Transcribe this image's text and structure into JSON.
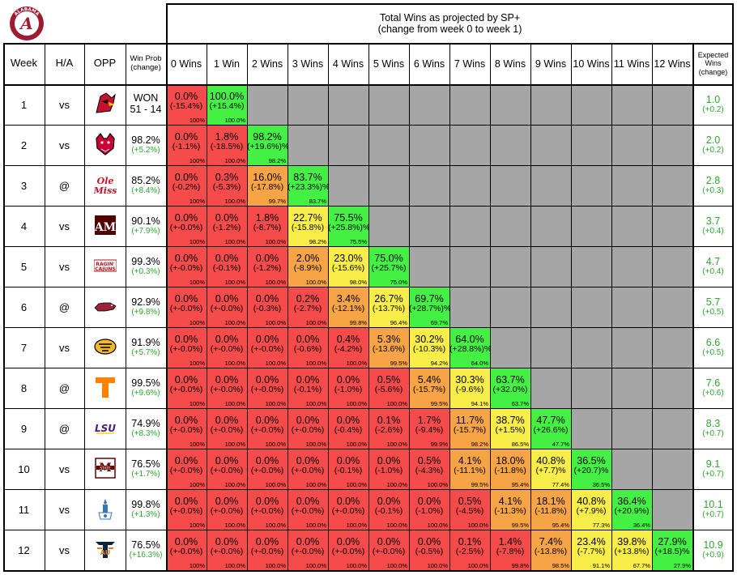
{
  "header": {
    "title": "Total Wins as projected by SP+",
    "subtitle": "(change from week 0 to week 1)"
  },
  "columns": {
    "week": "Week",
    "ha": "H/A",
    "opp": "OPP",
    "winprob": "Win Prob (change)",
    "wins": [
      "0 Wins",
      "1 Win",
      "2 Wins",
      "3 Wins",
      "4 Wins",
      "5 Wins",
      "6 Wins",
      "7 Wins",
      "8 Wins",
      "9 Wins",
      "10 Wins",
      "11 Wins",
      "12 Wins"
    ],
    "expected": "Expected Wins (change)"
  },
  "colors": {
    "red": "#f54b4b",
    "orange": "#f7a447",
    "yellow": "#f9ed4a",
    "green": "#44f044",
    "gray": "#a6a6a6",
    "greenText": "#2ca62c"
  },
  "logo_text": "ALABAMA",
  "rows": [
    {
      "week": "1",
      "ha": "vs",
      "opp_icon": "louisville-cardinal-icon",
      "wp_top": "WON",
      "wp_bottom": "51 - 14",
      "cells": [
        [
          "0.0%",
          "(-15.4%)",
          "100%"
        ],
        [
          "100.0%",
          "(+15.4%)",
          "100.0%"
        ]
      ],
      "ew": "1.0",
      "ew_change": "(+0.2)"
    },
    {
      "week": "2",
      "ha": "vs",
      "opp_icon": "arkansas-state-redwolf-icon",
      "wp_top": "98.2%",
      "wp_bottom": "(+5.2%)",
      "cells": [
        [
          "0.0%",
          "(-1.1%)",
          "100%"
        ],
        [
          "1.8%",
          "(-18.5%)",
          "100.0%"
        ],
        [
          "98.2%",
          "(+19.6%)%",
          "98.2%"
        ]
      ],
      "ew": "2.0",
      "ew_change": "(+0.2)"
    },
    {
      "week": "3",
      "ha": "@",
      "opp_icon": "ole-miss-icon",
      "wp_top": "85.2%",
      "wp_bottom": "(+8.4%)",
      "cells": [
        [
          "0.0%",
          "(-0.2%)",
          "100%"
        ],
        [
          "0.3%",
          "(-5.3%)",
          "100.0%"
        ],
        [
          "16.0%",
          "(-17.8%)",
          "99.7%"
        ],
        [
          "83.7%",
          "(+23.3%)%",
          "83.7%"
        ]
      ],
      "ew": "2.8",
      "ew_change": "(+0.3)"
    },
    {
      "week": "4",
      "ha": "vs",
      "opp_icon": "texas-am-icon",
      "wp_top": "90.1%",
      "wp_bottom": "(+7.9%)",
      "cells": [
        [
          "0.0%",
          "(+-0.0%)",
          "100%"
        ],
        [
          "0.0%",
          "(-1.2%)",
          "100.0%"
        ],
        [
          "1.8%",
          "(-8.7%)",
          "100.0%"
        ],
        [
          "22.7%",
          "(-15.8%)",
          "98.2%"
        ],
        [
          "75.5%",
          "(+25.8%)%",
          "75.5%"
        ]
      ],
      "ew": "3.7",
      "ew_change": "(+0.4)"
    },
    {
      "week": "5",
      "ha": "vs",
      "opp_icon": "ragin-cajuns-icon",
      "wp_top": "99.3%",
      "wp_bottom": "(+0.3%)",
      "cells": [
        [
          "0.0%",
          "(+-0.0%)",
          "100%"
        ],
        [
          "0.0%",
          "(-0.1%)",
          "100.0%"
        ],
        [
          "0.0%",
          "(-1.2%)",
          "100.0%"
        ],
        [
          "2.0%",
          "(-8.9%)",
          "100.0%"
        ],
        [
          "23.0%",
          "(-15.6%)",
          "98.0%"
        ],
        [
          "75.0%",
          "(+25.7%)",
          "75.0%"
        ]
      ],
      "ew": "4.7",
      "ew_change": "(+0.4)"
    },
    {
      "week": "6",
      "ha": "@",
      "opp_icon": "arkansas-razorback-icon",
      "wp_top": "92.9%",
      "wp_bottom": "(+9.8%)",
      "cells": [
        [
          "0.0%",
          "(+-0.0%)",
          "100%"
        ],
        [
          "0.0%",
          "(+-0.0%)",
          "100.0%"
        ],
        [
          "0.0%",
          "(-0.3%)",
          "100.0%"
        ],
        [
          "0.2%",
          "(-2.7%)",
          "100.0%"
        ],
        [
          "3.4%",
          "(-12.1%)",
          "99.8%"
        ],
        [
          "26.7%",
          "(-13.7%)",
          "96.4%"
        ],
        [
          "69.7%",
          "(+28.7%)%",
          "69.7%"
        ]
      ],
      "ew": "5.7",
      "ew_change": "(+0.5)"
    },
    {
      "week": "7",
      "ha": "vs",
      "opp_icon": "missouri-tiger-icon",
      "wp_top": "91.9%",
      "wp_bottom": "(+5.7%)",
      "cells": [
        [
          "0.0%",
          "(+-0.0%)",
          "100%"
        ],
        [
          "0.0%",
          "(+-0.0%)",
          "100.0%"
        ],
        [
          "0.0%",
          "(+-0.0%)",
          "100.0%"
        ],
        [
          "0.0%",
          "(-0.6%)",
          "100.0%"
        ],
        [
          "0.4%",
          "(-4.2%)",
          "100.0%"
        ],
        [
          "5.3%",
          "(-13.6%)",
          "99.5%"
        ],
        [
          "30.2%",
          "(-10.3%)",
          "94.2%"
        ],
        [
          "64.0%",
          "(+28.8%)%",
          "64.0%"
        ]
      ],
      "ew": "6.6",
      "ew_change": "(+0.5)"
    },
    {
      "week": "8",
      "ha": "@",
      "opp_icon": "tennessee-icon",
      "wp_top": "99.5%",
      "wp_bottom": "(+9.6%)",
      "cells": [
        [
          "0.0%",
          "(+-0.0%)",
          "100%"
        ],
        [
          "0.0%",
          "(+-0.0%)",
          "100.0%"
        ],
        [
          "0.0%",
          "(+-0.0%)",
          "100.0%"
        ],
        [
          "0.0%",
          "(-0.1%)",
          "100.0%"
        ],
        [
          "0.0%",
          "(-1.0%)",
          "100.0%"
        ],
        [
          "0.5%",
          "(-5.6%)",
          "100.0%"
        ],
        [
          "5.4%",
          "(-15.7%)",
          "99.5%"
        ],
        [
          "30.3%",
          "(-9.6%)",
          "94.1%"
        ],
        [
          "63.7%",
          "(+32.0%)",
          "63.7%"
        ]
      ],
      "ew": "7.6",
      "ew_change": "(+0.6)"
    },
    {
      "week": "9",
      "ha": "@",
      "opp_icon": "lsu-icon",
      "wp_top": "74.9%",
      "wp_bottom": "(+8.3%)",
      "cells": [
        [
          "0.0%",
          "(+-0.0%)",
          "100%"
        ],
        [
          "0.0%",
          "(+-0.0%)",
          "100.0%"
        ],
        [
          "0.0%",
          "(+-0.0%)",
          "100.0%"
        ],
        [
          "0.0%",
          "(+-0.0%)",
          "100.0%"
        ],
        [
          "0.0%",
          "(-0.4%)",
          "100.0%"
        ],
        [
          "0.1%",
          "(-2.6%)",
          "100.0%"
        ],
        [
          "1.7%",
          "(-9.4%)",
          "99.9%"
        ],
        [
          "11.7%",
          "(-15.7%)",
          "98.2%"
        ],
        [
          "38.7%",
          "(+1.5%)",
          "86.5%"
        ],
        [
          "47.7%",
          "(+26.6%)",
          "47.7%"
        ]
      ],
      "ew": "8.3",
      "ew_change": "(+0.7)"
    },
    {
      "week": "10",
      "ha": "vs",
      "opp_icon": "mississippi-state-icon",
      "wp_top": "76.5%",
      "wp_bottom": "(+1.7%)",
      "cells": [
        [
          "0.0%",
          "(+-0.0%)",
          "100%"
        ],
        [
          "0.0%",
          "(+-0.0%)",
          "100.0%"
        ],
        [
          "0.0%",
          "(+-0.0%)",
          "100.0%"
        ],
        [
          "0.0%",
          "(+-0.0%)",
          "100.0%"
        ],
        [
          "0.0%",
          "(-0.1%)",
          "100.0%"
        ],
        [
          "0.0%",
          "(-1.0%)",
          "100.0%"
        ],
        [
          "0.5%",
          "(-4.3%)",
          "100.0%"
        ],
        [
          "4.1%",
          "(-11.1%)",
          "99.5%"
        ],
        [
          "18.0%",
          "(-11.8%)",
          "95.4%"
        ],
        [
          "40.8%",
          "(+7.7)%",
          "77.4%"
        ],
        [
          "36.5%",
          "(+20.7)%",
          "36.5%"
        ]
      ],
      "ew": "9.1",
      "ew_change": "(+0.7)"
    },
    {
      "week": "11",
      "ha": "vs",
      "opp_icon": "citadel-icon",
      "wp_top": "99.8%",
      "wp_bottom": "(+1.3%)",
      "cells": [
        [
          "0.0%",
          "(+-0.0%)",
          "100%"
        ],
        [
          "0.0%",
          "(+-0.0%)",
          "100.0%"
        ],
        [
          "0.0%",
          "(+-0.0%)",
          "100.0%"
        ],
        [
          "0.0%",
          "(+-0.0%)",
          "100.0%"
        ],
        [
          "0.0%",
          "(+-0.0%)",
          "100.0%"
        ],
        [
          "0.0%",
          "(-0.1%)",
          "100.0%"
        ],
        [
          "0.0%",
          "(-1.0%)",
          "100.0%"
        ],
        [
          "0.5%",
          "(-4.5%)",
          "100.0%"
        ],
        [
          "4.1%",
          "(-11.3%)",
          "99.5%"
        ],
        [
          "18.1%",
          "(-11.8%)",
          "95.4%"
        ],
        [
          "40.8%",
          "(+7.9%)",
          "77.3%"
        ],
        [
          "36.4%",
          "(+20.9%)",
          "36.4%"
        ]
      ],
      "ew": "10.1",
      "ew_change": "(+0.7)"
    },
    {
      "week": "12",
      "ha": "vs",
      "opp_icon": "auburn-icon",
      "wp_top": "76.5%",
      "wp_bottom": "(+16.3%)",
      "cells": [
        [
          "0.0%",
          "(+-0.0%)",
          "100%"
        ],
        [
          "0.0%",
          "(+-0.0%)",
          "100.0%"
        ],
        [
          "0.0%",
          "(+-0.0%)",
          "100.0%"
        ],
        [
          "0.0%",
          "(+-0.0%)",
          "100.0%"
        ],
        [
          "0.0%",
          "(+-0.0%)",
          "100.0%"
        ],
        [
          "0.0%",
          "(+-0.0%)",
          "100.0%"
        ],
        [
          "0.0%",
          "(-0.5%)",
          "100.0%"
        ],
        [
          "0.1%",
          "(-2.5%)",
          "100.0%"
        ],
        [
          "1.4%",
          "(-7.8%)",
          "99.8%"
        ],
        [
          "7.4%",
          "(-13.8%)",
          "98.5%"
        ],
        [
          "23.4%",
          "(-7.7%)",
          "91.1%"
        ],
        [
          "39.8%",
          "(+13.8%)",
          "67.7%"
        ],
        [
          "27.9%",
          "(+18.5)%",
          "27.9%"
        ]
      ],
      "ew": "10.9",
      "ew_change": "(+0.9)"
    }
  ],
  "chart_data": {
    "type": "table",
    "title": "Total Wins as projected by SP+",
    "subtitle": "(change from week 0 to week 1)",
    "columns": [
      "0 Wins",
      "1 Win",
      "2 Wins",
      "3 Wins",
      "4 Wins",
      "5 Wins",
      "6 Wins",
      "7 Wins",
      "8 Wins",
      "9 Wins",
      "10 Wins",
      "11 Wins",
      "12 Wins"
    ],
    "weeks": [
      1,
      2,
      3,
      4,
      5,
      6,
      7,
      8,
      9,
      10,
      11,
      12
    ],
    "win_probability": [
      "WON 51 - 14",
      "98.2%",
      "85.2%",
      "90.1%",
      "99.3%",
      "92.9%",
      "91.9%",
      "99.5%",
      "74.9%",
      "76.5%",
      "99.8%",
      "76.5%"
    ],
    "expected_wins": [
      1.0,
      2.0,
      2.8,
      3.7,
      4.7,
      5.7,
      6.6,
      7.6,
      8.3,
      9.1,
      10.1,
      10.9
    ],
    "final_distribution_week12": [
      0.0,
      0.0,
      0.0,
      0.0,
      0.0,
      0.0,
      0.0,
      0.1,
      1.4,
      7.4,
      23.4,
      39.8,
      27.9
    ]
  }
}
